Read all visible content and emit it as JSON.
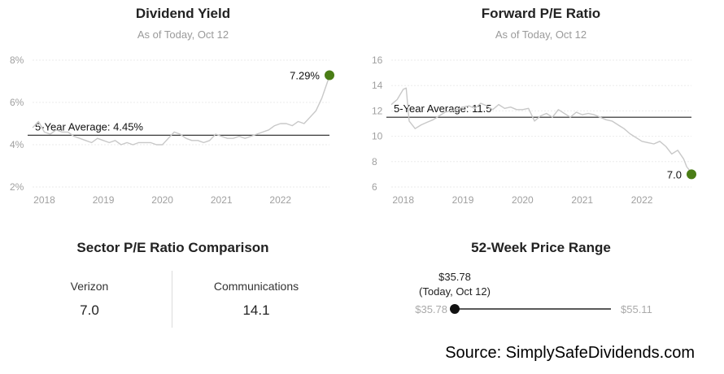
{
  "chart_data": [
    {
      "type": "line",
      "title": "Dividend Yield",
      "subtitle": "As of Today, Oct 12",
      "x_ticks": [
        "2018",
        "2019",
        "2020",
        "2021",
        "2022"
      ],
      "y_ticks": [
        "2%",
        "4%",
        "6%",
        "8%"
      ],
      "ylim": [
        2,
        8
      ],
      "xlim": [
        2017.8,
        2022.83
      ],
      "grid": true,
      "series": [
        {
          "x": [
            2017.8,
            2017.9,
            2018.0,
            2018.1,
            2018.2,
            2018.3,
            2018.4,
            2018.5,
            2018.6,
            2018.7,
            2018.8,
            2018.9,
            2019.0,
            2019.1,
            2019.2,
            2019.3,
            2019.4,
            2019.5,
            2019.6,
            2019.7,
            2019.8,
            2019.9,
            2020.0,
            2020.1,
            2020.2,
            2020.3,
            2020.4,
            2020.5,
            2020.6,
            2020.7,
            2020.8,
            2020.9,
            2021.0,
            2021.1,
            2021.2,
            2021.3,
            2021.4,
            2021.5,
            2021.6,
            2021.7,
            2021.8,
            2021.9,
            2022.0,
            2022.1,
            2022.2,
            2022.3,
            2022.4,
            2022.5,
            2022.6,
            2022.7,
            2022.75,
            2022.8,
            2022.83
          ],
          "values": [
            4.8,
            5.1,
            4.6,
            4.5,
            4.7,
            4.6,
            4.6,
            4.4,
            4.3,
            4.2,
            4.1,
            4.3,
            4.2,
            4.1,
            4.2,
            4.0,
            4.1,
            4.0,
            4.1,
            4.1,
            4.1,
            4.0,
            4.0,
            4.3,
            4.6,
            4.5,
            4.3,
            4.2,
            4.2,
            4.1,
            4.2,
            4.5,
            4.4,
            4.3,
            4.3,
            4.4,
            4.3,
            4.4,
            4.5,
            4.6,
            4.7,
            4.9,
            5.0,
            5.0,
            4.9,
            5.1,
            5.0,
            5.3,
            5.6,
            6.2,
            6.6,
            7.0,
            7.29
          ]
        }
      ],
      "reference_line": {
        "value": 4.45,
        "label": "5-Year Average: 4.45%"
      },
      "endpoint": {
        "x": 2022.83,
        "value": 7.29,
        "label": "7.29%"
      }
    },
    {
      "type": "line",
      "title": "Forward P/E Ratio",
      "subtitle": "As of Today, Oct 12",
      "x_ticks": [
        "2018",
        "2019",
        "2020",
        "2021",
        "2022"
      ],
      "y_ticks": [
        "6",
        "8",
        "10",
        "12",
        "14",
        "16"
      ],
      "ylim": [
        6,
        16
      ],
      "xlim": [
        2017.8,
        2022.83
      ],
      "grid": true,
      "series": [
        {
          "x": [
            2017.8,
            2017.9,
            2018.0,
            2018.05,
            2018.1,
            2018.2,
            2018.3,
            2018.4,
            2018.5,
            2018.6,
            2018.7,
            2018.8,
            2018.9,
            2019.0,
            2019.1,
            2019.2,
            2019.3,
            2019.4,
            2019.5,
            2019.6,
            2019.7,
            2019.8,
            2019.9,
            2020.0,
            2020.1,
            2020.2,
            2020.3,
            2020.4,
            2020.5,
            2020.6,
            2020.7,
            2020.8,
            2020.9,
            2021.0,
            2021.1,
            2021.2,
            2021.3,
            2021.4,
            2021.5,
            2021.6,
            2021.7,
            2021.8,
            2021.9,
            2022.0,
            2022.1,
            2022.2,
            2022.3,
            2022.4,
            2022.5,
            2022.6,
            2022.7,
            2022.75,
            2022.8,
            2022.83
          ],
          "values": [
            12.5,
            12.9,
            13.7,
            13.8,
            11.2,
            10.6,
            10.9,
            11.1,
            11.3,
            11.6,
            11.9,
            12.0,
            12.1,
            12.3,
            12.4,
            12.2,
            12.6,
            12.4,
            12.1,
            12.5,
            12.2,
            12.3,
            12.1,
            12.1,
            12.2,
            11.2,
            11.6,
            11.8,
            11.5,
            12.1,
            11.8,
            11.5,
            11.9,
            11.7,
            11.8,
            11.7,
            11.5,
            11.3,
            11.2,
            10.9,
            10.6,
            10.2,
            9.9,
            9.6,
            9.5,
            9.4,
            9.6,
            9.2,
            8.6,
            8.9,
            8.2,
            7.6,
            7.3,
            7.0
          ]
        }
      ],
      "reference_line": {
        "value": 11.5,
        "label": "5-Year Average: 11.5"
      },
      "endpoint": {
        "x": 2022.83,
        "value": 7.0,
        "label": "7.0"
      }
    }
  ],
  "sector": {
    "title": "Sector P/E Ratio Comparison",
    "left_label": "Verizon",
    "left_value": "7.0",
    "right_label": "Communications",
    "right_value": "14.1"
  },
  "range52": {
    "title": "52-Week Price Range",
    "current_price": "$35.78",
    "current_note": "(Today, Oct 12)",
    "low": "$35.78",
    "high": "$55.11",
    "current_fraction": 0.0
  },
  "source": "Source: SimplySafeDividends.com",
  "colors": {
    "accent": "#4a7d16",
    "line": "#c8c8c8",
    "avg_line": "#222222",
    "grid": "#ebebeb",
    "tick": "#a0a0a0"
  }
}
